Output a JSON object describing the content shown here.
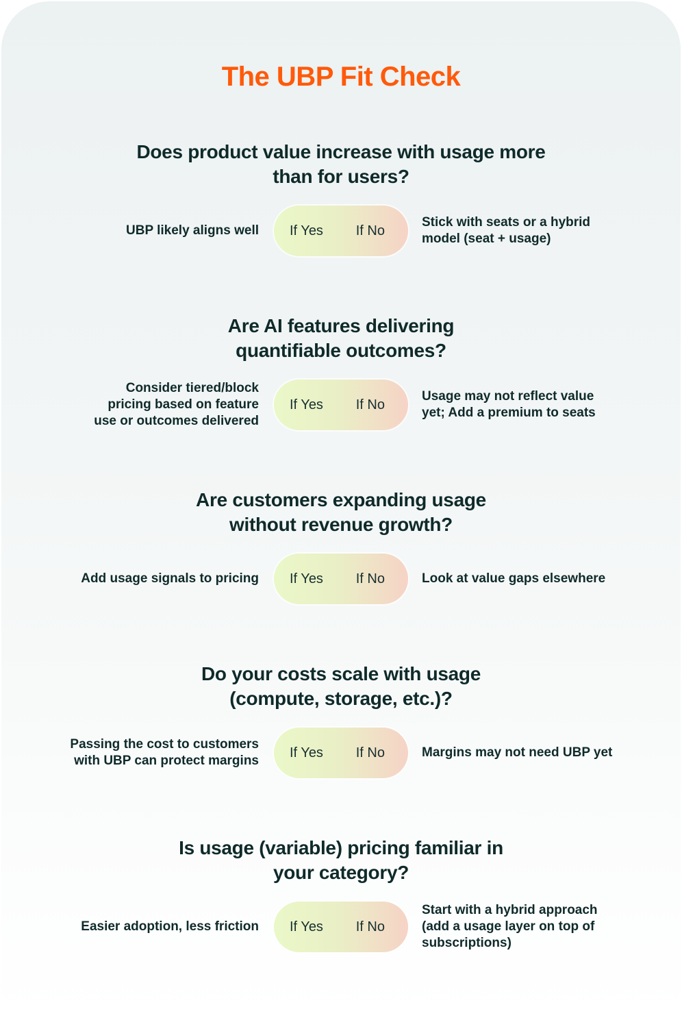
{
  "title": "The UBP Fit Check",
  "questions": [
    {
      "question": "Does product value increase with usage more than for users?",
      "yes_label": "If Yes",
      "no_label": "If No",
      "if_yes": "UBP likely aligns well",
      "if_no": "Stick with seats or a hybrid model (seat + usage)"
    },
    {
      "question": "Are AI features delivering quantifiable outcomes?",
      "yes_label": "If Yes",
      "no_label": "If No",
      "if_yes": "Consider tiered/block pricing based on feature use or outcomes delivered",
      "if_no": "Usage may not reflect value yet; Add a premium to seats"
    },
    {
      "question": "Are customers expanding usage without revenue growth?",
      "yes_label": "If Yes",
      "no_label": "If No",
      "if_yes": "Add usage signals to pricing",
      "if_no": "Look at value gaps elsewhere"
    },
    {
      "question": "Do your costs scale with usage (compute, storage, etc.)?",
      "yes_label": "If Yes",
      "no_label": "If No",
      "if_yes": "Passing the cost to customers with UBP can protect margins",
      "if_no": "Margins may not need UBP yet"
    },
    {
      "question": "Is usage (variable) pricing familiar in your category?",
      "yes_label": "If Yes",
      "no_label": "If No",
      "if_yes": "Easier adoption, less friction",
      "if_no": "Start with a hybrid approach (add a usage layer on top of subscriptions)"
    }
  ],
  "colors": {
    "title": "#ff5a0a",
    "text": "#0f2a2a",
    "pill_yes": "#eaf8c8",
    "pill_no": "#f6d3c6"
  }
}
